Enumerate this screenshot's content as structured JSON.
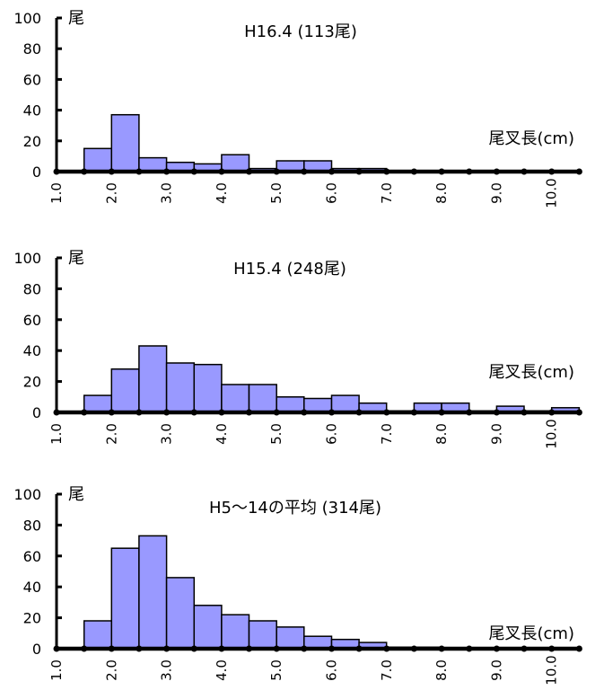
{
  "chart_data": [
    {
      "type": "bar",
      "title": "H16.4 (113尾)",
      "ylabel": "尾",
      "xlabel": "尾叉長(cm)",
      "ylim": [
        0,
        100
      ],
      "yticks": [
        0,
        20,
        40,
        60,
        80,
        100
      ],
      "x_tick_labels": [
        "1.0",
        "2.0",
        "3.0",
        "4.0",
        "5.0",
        "6.0",
        "7.0",
        "8.0",
        "9.0",
        "10.0"
      ],
      "bin_start": 1.0,
      "bin_width": 0.5,
      "values": [
        0,
        15,
        37,
        9,
        6,
        5,
        11,
        2,
        7,
        7,
        2,
        2,
        0,
        0,
        0,
        0,
        0,
        0,
        0
      ]
    },
    {
      "type": "bar",
      "title": "H15.4 (248尾)",
      "ylabel": "尾",
      "xlabel": "尾叉長(cm)",
      "ylim": [
        0,
        100
      ],
      "yticks": [
        0,
        20,
        40,
        60,
        80,
        100
      ],
      "x_tick_labels": [
        "1.0",
        "2.0",
        "3.0",
        "4.0",
        "5.0",
        "6.0",
        "7.0",
        "8.0",
        "9.0",
        "10.0"
      ],
      "bin_start": 1.0,
      "bin_width": 0.5,
      "values": [
        0,
        11,
        28,
        43,
        32,
        31,
        18,
        18,
        10,
        9,
        11,
        6,
        1,
        6,
        6,
        1,
        4,
        1,
        3
      ]
    },
    {
      "type": "bar",
      "title": "H5～14の平均 (314尾)",
      "ylabel": "尾",
      "xlabel": "尾叉長(cm)",
      "ylim": [
        0,
        100
      ],
      "yticks": [
        0,
        20,
        40,
        60,
        80,
        100
      ],
      "x_tick_labels": [
        "1.0",
        "2.0",
        "3.0",
        "4.0",
        "5.0",
        "6.0",
        "7.0",
        "8.0",
        "9.0",
        "10.0"
      ],
      "bin_start": 1.0,
      "bin_width": 0.5,
      "values": [
        0,
        18,
        65,
        73,
        46,
        28,
        22,
        18,
        14,
        8,
        6,
        4,
        1,
        1,
        0,
        0,
        0,
        0,
        0
      ]
    }
  ],
  "colors": {
    "bar_fill": "#9999ff",
    "bar_stroke": "#000000",
    "axis": "#000000"
  }
}
